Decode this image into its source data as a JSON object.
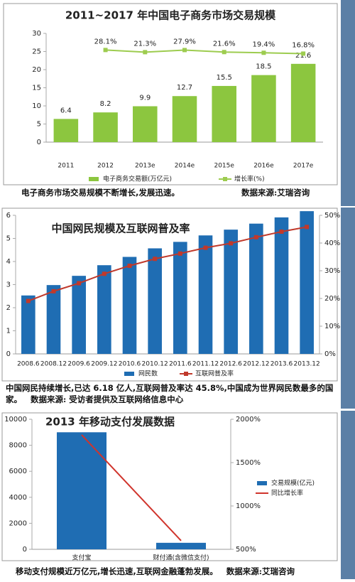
{
  "chart_data": [
    {
      "type": "bar",
      "title": "2011~2017 年中国电子商务市场交易规模",
      "categories": [
        "2011",
        "2012",
        "2013e",
        "2014e",
        "2015e",
        "2016e",
        "2017e"
      ],
      "series": [
        {
          "name": "电子商务交易额(万亿元)",
          "type": "bar",
          "color": "#8cc63f",
          "values": [
            6.4,
            8.2,
            9.9,
            12.7,
            15.5,
            18.5,
            21.6
          ]
        },
        {
          "name": "增长率(%)",
          "type": "line",
          "axis": "y2",
          "color": "#9dcc4f",
          "marker": "square",
          "values": [
            null,
            28.1,
            21.3,
            27.9,
            21.6,
            19.4,
            16.8
          ],
          "value_labels": [
            null,
            "28.1%",
            "21.3%",
            "27.9%",
            "21.6%",
            "19.4%",
            "16.8%"
          ]
        }
      ],
      "ylim": [
        0,
        30
      ],
      "yticks": [
        0,
        5,
        10,
        15,
        20,
        25,
        30
      ],
      "y2lim": [
        -260,
        80
      ],
      "bar_labels": true,
      "caption": "电子商务市场交易规模不断增长,发展迅速。",
      "source": "数据来源:艾瑞咨询"
    },
    {
      "type": "bar",
      "title": "中国网民规模及互联网普及率",
      "categories": [
        "2008.6",
        "2008.12",
        "2009.6",
        "2009.12",
        "2010.6",
        "2010.12",
        "2011.6",
        "2011.12",
        "2012.6",
        "2012.12",
        "2013.6",
        "2013.12"
      ],
      "series": [
        {
          "name": "网民数",
          "type": "bar",
          "color": "#1f6db3",
          "values": [
            2.53,
            2.98,
            3.38,
            3.84,
            4.2,
            4.57,
            4.85,
            5.13,
            5.38,
            5.64,
            5.91,
            6.18
          ]
        },
        {
          "name": "互联网普及率",
          "type": "line",
          "axis": "y2",
          "color": "#c0392b",
          "marker": "square",
          "values": [
            19.1,
            22.6,
            25.5,
            28.9,
            31.8,
            34.3,
            36.2,
            38.3,
            39.9,
            42.1,
            44.1,
            45.8
          ]
        }
      ],
      "ylim": [
        0,
        6
      ],
      "yticks": [
        0,
        1,
        2,
        3,
        4,
        5,
        6
      ],
      "y2lim": [
        0,
        50
      ],
      "y2ticks": [
        {
          "value": 0,
          "label": "0%"
        },
        {
          "value": 10,
          "label": "10%"
        },
        {
          "value": 20,
          "label": "20%"
        },
        {
          "value": 30,
          "label": "30%"
        },
        {
          "value": 40,
          "label": "40%"
        },
        {
          "value": 50,
          "label": "50%"
        }
      ],
      "bar_labels": false,
      "caption": "中国网民持续增长,已达 6.18 亿人,互联网普及率达 45.8%,中国成为世界网民数最多的国家。",
      "source": "数据来源: 受访者提供及互联网络信息中心"
    },
    {
      "type": "bar",
      "title": "2013 年移动支付发展数据",
      "categories": [
        "支付宝",
        "财付通(含微信支付)"
      ],
      "series": [
        {
          "name": "交易规模(亿元)",
          "type": "bar",
          "color": "#1f6db3",
          "values": [
            9000,
            500
          ]
        },
        {
          "name": "同比增长率",
          "type": "line",
          "axis": "y2",
          "color": "#d0342c",
          "values": [
            1820,
            600
          ]
        }
      ],
      "ylim": [
        0,
        10000
      ],
      "yticks": [
        0,
        2000,
        4000,
        6000,
        8000,
        10000
      ],
      "y2lim": [
        500,
        2000
      ],
      "y2ticks": [
        {
          "value": 500,
          "label": "500%"
        },
        {
          "value": 1000,
          "label": "1000%"
        },
        {
          "value": 1500,
          "label": "1500%"
        },
        {
          "value": 2000,
          "label": "2000%"
        }
      ],
      "bar_labels": false,
      "caption": "移动支付规模近万亿元,增长迅速,互联网金融蓬勃发展。",
      "source": "数据来源:艾瑞咨询"
    }
  ]
}
